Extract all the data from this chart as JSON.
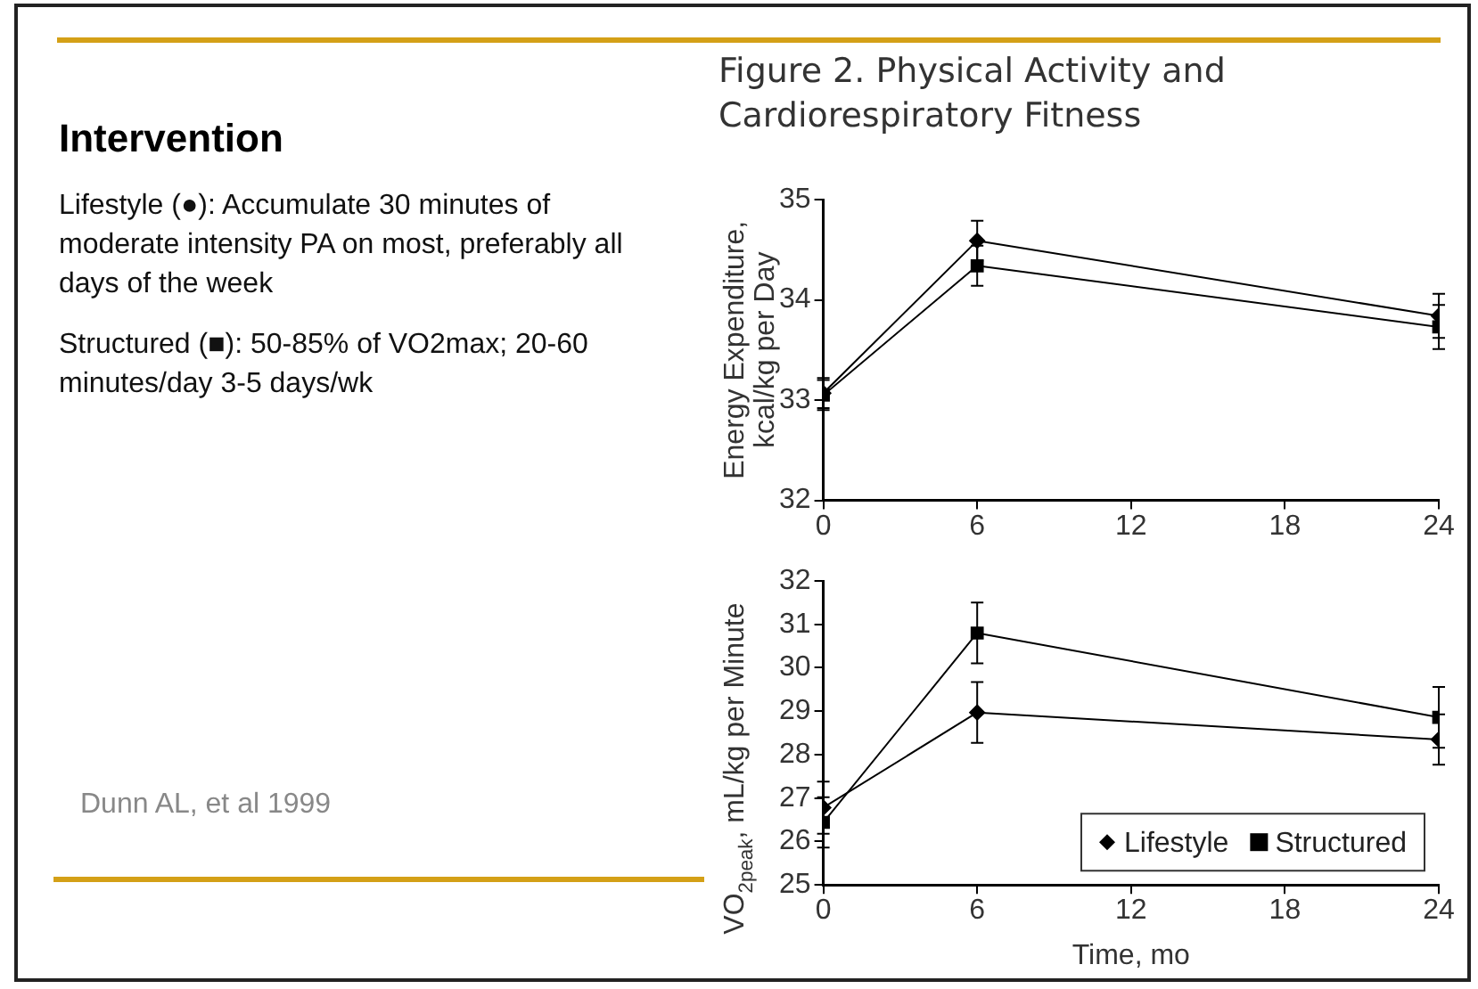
{
  "chart_data": [
    {
      "type": "other",
      "title": "Intervention",
      "annotations": [
        "Lifestyle (●): Accumulate 30 minutes of moderate intensity PA on most, preferably all days of the week",
        "Structured (■): 50-85% of VO2max; 20-60 minutes/day 3-5 days/wk",
        "Dunn AL, et al 1999"
      ]
    },
    {
      "type": "line",
      "title": "Figure 2. Physical Activity and Cardiorespiratory Fitness",
      "ylabel": "Energy Expenditure, kcal/kg per Day",
      "x": [
        0,
        6,
        24
      ],
      "xlim": [
        0,
        24
      ],
      "xticks": [
        0,
        6,
        12,
        18,
        24
      ],
      "ylim": [
        32,
        35
      ],
      "yticks": [
        32,
        33,
        34,
        35
      ],
      "grid": false,
      "legend": false,
      "series": [
        {
          "color": "#000000",
          "marker": "diamond",
          "values": [
            33.07,
            34.59,
            33.84
          ],
          "errors": [
            0.15,
            0.2,
            0.22
          ]
        },
        {
          "color": "#000000",
          "marker": "square",
          "values": [
            33.05,
            34.34,
            33.73
          ],
          "errors": [
            0.15,
            0.2,
            0.22
          ]
        }
      ]
    },
    {
      "type": "line",
      "xlabel": "Time, mo",
      "ylabel": "VO$_{2peak}$, mL/kg per Minute",
      "x": [
        0,
        6,
        24
      ],
      "xlim": [
        0,
        24
      ],
      "xticks": [
        0,
        6,
        12,
        18,
        24
      ],
      "ylim": [
        25,
        32
      ],
      "yticks": [
        25,
        26,
        27,
        28,
        29,
        30,
        31,
        32
      ],
      "grid": false,
      "legend": "bottom right",
      "series": [
        {
          "name": "Lifestyle",
          "color": "#000000",
          "marker": "diamond",
          "values": [
            26.78,
            28.97,
            28.35
          ],
          "errors": [
            0.6,
            0.7,
            0.58
          ]
        },
        {
          "name": "Structured",
          "color": "#000000",
          "marker": "square",
          "values": [
            26.44,
            30.8,
            28.86
          ],
          "errors": [
            0.58,
            0.7,
            0.7
          ]
        }
      ]
    }
  ]
}
